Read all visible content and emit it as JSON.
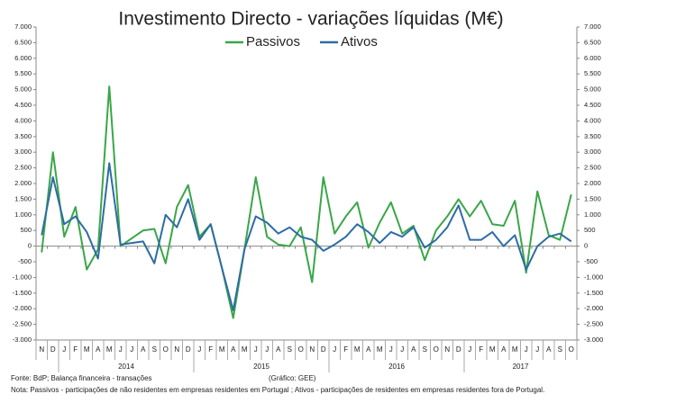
{
  "chart_data": {
    "type": "line",
    "title": "Investimento Directo - variações líquidas (M€)",
    "categories": [
      "N",
      "D",
      "J",
      "F",
      "M",
      "A",
      "M",
      "J",
      "J",
      "A",
      "S",
      "O",
      "N",
      "D",
      "J",
      "F",
      "M",
      "A",
      "M",
      "J",
      "J",
      "A",
      "S",
      "O",
      "N",
      "D",
      "J",
      "F",
      "M",
      "A",
      "M",
      "J",
      "J",
      "A",
      "S",
      "O",
      "N",
      "D",
      "J",
      "F",
      "M",
      "A",
      "M",
      "J",
      "J",
      "A",
      "S",
      "O"
    ],
    "years": [
      "2014",
      "2015",
      "2016",
      "2017"
    ],
    "series": [
      {
        "name": "Passivos",
        "color": "#3aa648",
        "values": [
          -200,
          3000,
          300,
          1250,
          -750,
          -100,
          5100,
          0,
          250,
          500,
          550,
          -550,
          1250,
          1950,
          300,
          700,
          -700,
          -2300,
          -100,
          2200,
          300,
          50,
          0,
          600,
          -1150,
          2200,
          400,
          950,
          1400,
          -50,
          750,
          1400,
          400,
          650,
          -450,
          500,
          950,
          1500,
          950,
          1450,
          700,
          650,
          1450,
          -850,
          1750,
          350,
          200,
          1650
        ]
      },
      {
        "name": "Ativos",
        "color": "#2e6ca4",
        "values": [
          350,
          2200,
          700,
          950,
          450,
          -400,
          2650,
          50,
          100,
          150,
          -550,
          1000,
          600,
          1500,
          200,
          700,
          -700,
          -2050,
          -100,
          950,
          750,
          400,
          600,
          300,
          200,
          -150,
          50,
          300,
          700,
          450,
          100,
          450,
          300,
          600,
          -50,
          200,
          600,
          1300,
          200,
          200,
          450,
          0,
          350,
          -750,
          0,
          300,
          400,
          150
        ]
      }
    ],
    "ylim": [
      -3000,
      7000
    ],
    "yticks": [
      {
        "value": -3000,
        "label": "-3.000"
      },
      {
        "value": -2500,
        "label": "-2.500"
      },
      {
        "value": -2000,
        "label": "-2.000"
      },
      {
        "value": -1500,
        "label": "-1.500"
      },
      {
        "value": -1000,
        "label": "-1.000"
      },
      -500,
      0,
      500,
      {
        "value": 1000,
        "label": "1.000"
      },
      {
        "value": 1500,
        "label": "1.500"
      },
      {
        "value": 2000,
        "label": "2.000"
      },
      {
        "value": 2500,
        "label": "2.500"
      },
      {
        "value": 3000,
        "label": "3.000"
      },
      {
        "value": 3500,
        "label": "3.500"
      },
      {
        "value": 4000,
        "label": "4.000"
      },
      {
        "value": 4500,
        "label": "4.500"
      },
      {
        "value": 5000,
        "label": "5.000"
      },
      {
        "value": 5500,
        "label": "5.500"
      },
      {
        "value": 6000,
        "label": "6.000"
      },
      {
        "value": 6500,
        "label": "6.500"
      },
      {
        "value": 7000,
        "label": "7.000"
      }
    ],
    "y2lim": [
      -3000,
      7000
    ],
    "y2ticks": [
      {
        "value": -3000,
        "label": "-3.000"
      },
      {
        "value": -2500,
        "label": "-2.500"
      },
      {
        "value": -2000,
        "label": "-2.000"
      },
      {
        "value": -1500,
        "label": "-1.500"
      },
      {
        "value": -1000,
        "label": "-1.000"
      },
      -500,
      0,
      500,
      {
        "value": 1000,
        "label": "1.000"
      },
      {
        "value": 1500,
        "label": "1.500"
      },
      {
        "value": 2000,
        "label": "2.000"
      },
      {
        "value": 2500,
        "label": "2.500"
      },
      {
        "value": 3000,
        "label": "3.000"
      },
      {
        "value": 3500,
        "label": "3.500"
      },
      {
        "value": 4000,
        "label": "4.000"
      },
      {
        "value": 4500,
        "label": "4.500"
      },
      {
        "value": 5000,
        "label": "5.000"
      },
      {
        "value": 5500,
        "label": "5.500"
      },
      {
        "value": 6000,
        "label": "6.000"
      },
      {
        "value": 6500,
        "label": "6.500"
      },
      {
        "value": 7000,
        "label": "7.000"
      }
    ],
    "source": "Fonte: BdP; Balança financeira - transações",
    "credit": "(Gráfico: GEE)",
    "note": "Nota: Passivos - participações de não residentes em empresas residentes em Portugal ; Ativos - participações de residentes em empresas residentes fora de Portugal."
  }
}
